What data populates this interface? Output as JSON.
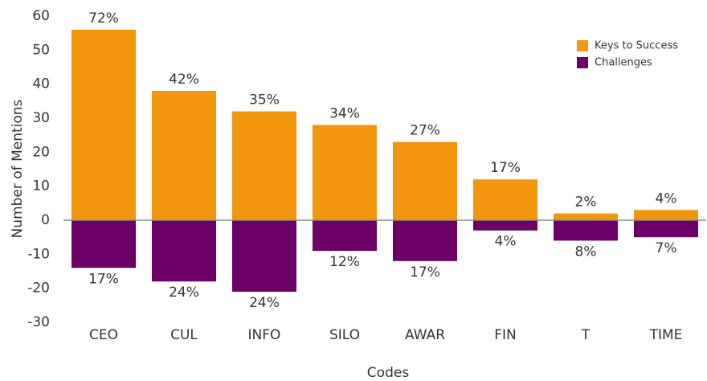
{
  "chart_data": {
    "type": "bar",
    "categories": [
      "CEO",
      "CUL",
      "INFO",
      "SILO",
      "AWAR",
      "FIN",
      "T",
      "TIME"
    ],
    "series": [
      {
        "name": "Keys to Success",
        "color": "#f2960e",
        "values": [
          56,
          38,
          32,
          28,
          23,
          12,
          2,
          3
        ],
        "labels": [
          "72%",
          "42%",
          "35%",
          "34%",
          "27%",
          "17%",
          "2%",
          "4%"
        ]
      },
      {
        "name": "Challenges",
        "color": "#6c0066",
        "values": [
          -14,
          -18,
          -21,
          -9,
          -12,
          -3,
          -6,
          -5
        ],
        "labels": [
          "17%",
          "24%",
          "24%",
          "12%",
          "17%",
          "4%",
          "8%",
          "7%"
        ]
      }
    ],
    "xlabel": "Codes",
    "ylabel": "Number of Mentions",
    "ylim": [
      -30,
      60
    ],
    "yticks": [
      -30,
      -20,
      -10,
      0,
      10,
      20,
      30,
      40,
      50,
      60
    ],
    "grid": false,
    "legend": "top right"
  }
}
